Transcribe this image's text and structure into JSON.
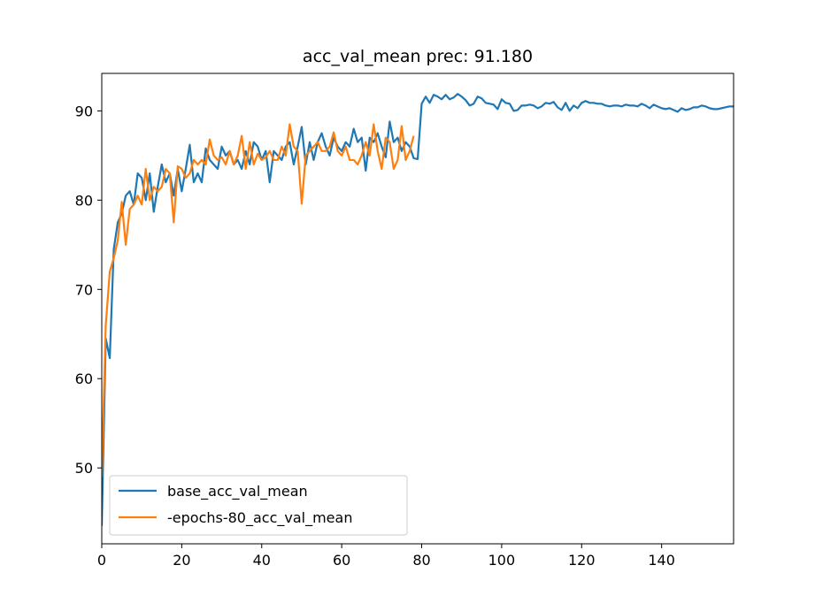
{
  "chart_data": {
    "type": "line",
    "title": "acc_val_mean prec: 91.180",
    "xlabel": "",
    "ylabel": "",
    "xlim": [
      0,
      158
    ],
    "ylim": [
      41.5,
      94.2
    ],
    "xticks": [
      0,
      20,
      40,
      60,
      80,
      100,
      120,
      140
    ],
    "yticks": [
      50,
      60,
      70,
      80,
      90
    ],
    "grid": false,
    "legend_position": "lower-left",
    "series": [
      {
        "name": "base_acc_val_mean",
        "color": "#1f77b4",
        "x": [
          0,
          1,
          2,
          3,
          4,
          5,
          6,
          7,
          8,
          9,
          10,
          11,
          12,
          13,
          14,
          15,
          16,
          17,
          18,
          19,
          20,
          21,
          22,
          23,
          24,
          25,
          26,
          27,
          28,
          29,
          30,
          31,
          32,
          33,
          34,
          35,
          36,
          37,
          38,
          39,
          40,
          41,
          42,
          43,
          44,
          45,
          46,
          47,
          48,
          49,
          50,
          51,
          52,
          53,
          54,
          55,
          56,
          57,
          58,
          59,
          60,
          61,
          62,
          63,
          64,
          65,
          66,
          67,
          68,
          69,
          70,
          71,
          72,
          73,
          74,
          75,
          76,
          77,
          78,
          79,
          80,
          81,
          82,
          83,
          84,
          85,
          86,
          87,
          88,
          89,
          90,
          91,
          92,
          93,
          94,
          95,
          96,
          97,
          98,
          99,
          100,
          101,
          102,
          103,
          104,
          105,
          106,
          107,
          108,
          109,
          110,
          111,
          112,
          113,
          114,
          115,
          116,
          117,
          118,
          119,
          120,
          121,
          122,
          123,
          124,
          125,
          126,
          127,
          128,
          129,
          130,
          131,
          132,
          133,
          134,
          135,
          136,
          137,
          138,
          139,
          140,
          141,
          142,
          143,
          144,
          145,
          146,
          147,
          148,
          149,
          150,
          151,
          152,
          153,
          154,
          155,
          156,
          157,
          158
        ],
        "values": [
          43.5,
          64.5,
          62.3,
          74.5,
          77.5,
          78.5,
          80.5,
          81.0,
          79.5,
          83.0,
          82.5,
          80.0,
          83.0,
          78.7,
          81.5,
          84.0,
          82.0,
          83.0,
          80.5,
          83.5,
          81.0,
          83.5,
          86.2,
          82.0,
          83.0,
          82.0,
          85.8,
          84.5,
          84.0,
          83.5,
          86.0,
          85.0,
          85.5,
          84.0,
          84.5,
          83.5,
          85.5,
          84.0,
          86.5,
          86.0,
          84.5,
          85.5,
          82.0,
          85.5,
          85.0,
          84.5,
          86.0,
          86.5,
          84.0,
          86.0,
          88.2,
          84.0,
          86.5,
          84.5,
          86.5,
          87.5,
          86.0,
          85.0,
          87.0,
          86.0,
          85.5,
          86.5,
          86.0,
          88.0,
          86.5,
          87.0,
          83.3,
          87.0,
          86.5,
          87.5,
          86.0,
          84.8,
          88.8,
          86.5,
          87.0,
          85.5,
          86.5,
          86.0,
          84.7,
          84.6,
          90.8,
          91.6,
          90.9,
          91.8,
          91.6,
          91.3,
          91.8,
          91.3,
          91.5,
          91.9,
          91.6,
          91.2,
          90.6,
          90.8,
          91.6,
          91.4,
          90.9,
          90.8,
          90.7,
          90.2,
          91.3,
          90.9,
          90.8,
          90.0,
          90.1,
          90.6,
          90.6,
          90.7,
          90.6,
          90.3,
          90.5,
          90.9,
          90.8,
          91.0,
          90.4,
          90.1,
          90.9,
          90.0,
          90.6,
          90.3,
          90.9,
          91.1,
          90.9,
          90.9,
          90.8,
          90.8,
          90.6,
          90.5,
          90.6,
          90.6,
          90.5,
          90.7,
          90.6,
          90.6,
          90.5,
          90.8,
          90.6,
          90.3,
          90.7,
          90.5,
          90.3,
          90.2,
          90.3,
          90.1,
          89.9,
          90.3,
          90.1,
          90.2,
          90.4,
          90.4,
          90.6,
          90.5,
          90.3,
          90.2,
          90.2,
          90.3,
          90.4,
          90.5,
          90.5
        ]
      },
      {
        "name": "-epochs-80_acc_val_mean",
        "color": "#ff7f0e",
        "x": [
          0,
          1,
          2,
          3,
          4,
          5,
          6,
          7,
          8,
          9,
          10,
          11,
          12,
          13,
          14,
          15,
          16,
          17,
          18,
          19,
          20,
          21,
          22,
          23,
          24,
          25,
          26,
          27,
          28,
          29,
          30,
          31,
          32,
          33,
          34,
          35,
          36,
          37,
          38,
          39,
          40,
          41,
          42,
          43,
          44,
          45,
          46,
          47,
          48,
          49,
          50,
          51,
          52,
          53,
          54,
          55,
          56,
          57,
          58,
          59,
          60,
          61,
          62,
          63,
          64,
          65,
          66,
          67,
          68,
          69,
          70,
          71,
          72,
          73,
          74,
          75,
          76,
          77,
          78
        ],
        "values": [
          49.0,
          66.0,
          72.0,
          73.5,
          75.5,
          79.8,
          75.0,
          79.0,
          79.5,
          80.5,
          79.5,
          83.5,
          80.0,
          81.5,
          81.0,
          81.5,
          83.5,
          83.0,
          77.5,
          83.8,
          83.5,
          82.5,
          83.0,
          84.5,
          84.0,
          84.5,
          84.0,
          86.8,
          85.0,
          84.5,
          84.8,
          84.0,
          85.5,
          84.0,
          85.0,
          87.2,
          83.5,
          86.5,
          84.0,
          85.2,
          84.5,
          84.8,
          85.5,
          84.5,
          84.5,
          86.0,
          85.0,
          88.5,
          86.0,
          85.5,
          79.6,
          85.0,
          85.5,
          86.0,
          86.5,
          85.5,
          85.5,
          86.0,
          87.6,
          85.5,
          85.0,
          86.0,
          84.5,
          84.5,
          84.0,
          85.0,
          86.5,
          85.0,
          88.5,
          85.5,
          83.5,
          87.0,
          86.5,
          83.5,
          84.5,
          88.3,
          84.5,
          85.5,
          87.2
        ]
      }
    ]
  }
}
